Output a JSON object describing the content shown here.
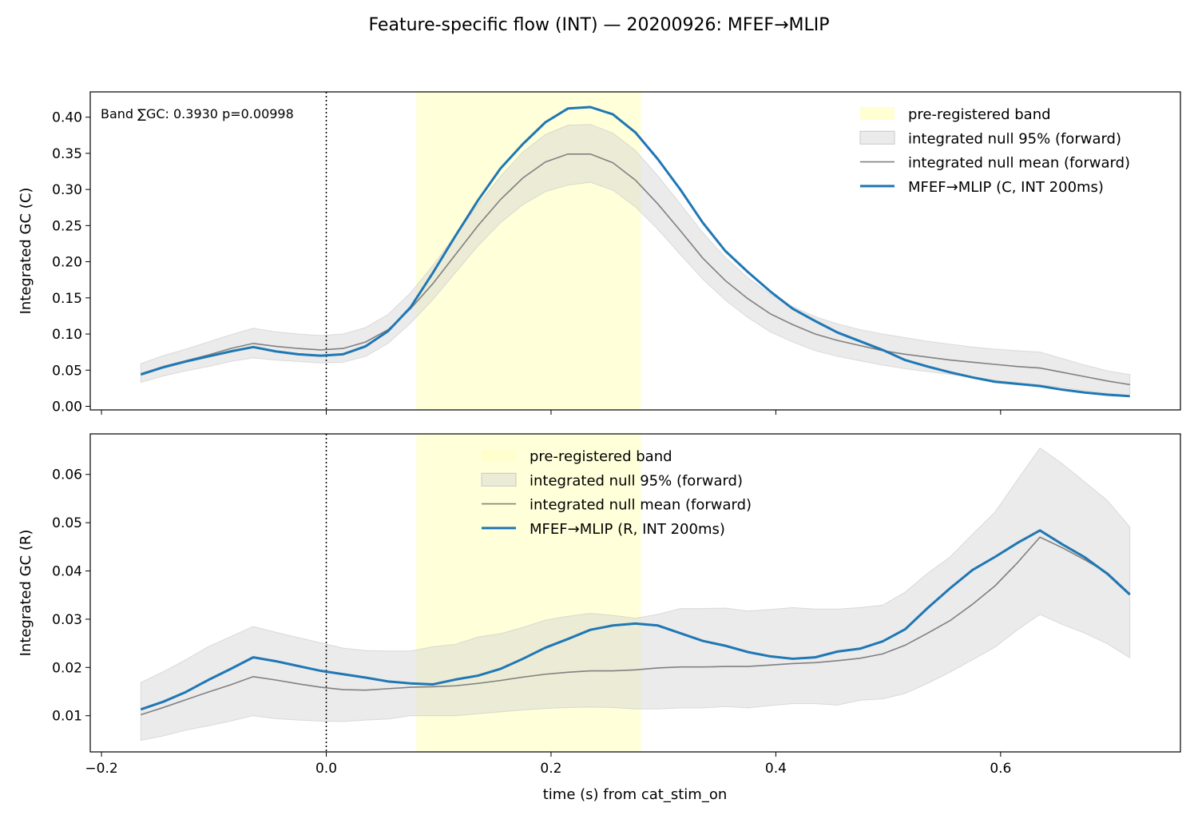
{
  "figure": {
    "title": "Feature-specific flow (INT) — 20200926: MFEF→MLIP",
    "xlabel": "time (s) from cat_stim_on"
  },
  "colors": {
    "band": "#ffffcc",
    "null_fill": "#d3d3d3",
    "null_mean": "#808080",
    "series": "#1f77b4"
  },
  "chart_data": [
    {
      "type": "line",
      "panel": "top",
      "ylabel": "Integrated GC (C)",
      "annotation": "Band ∑GC: 0.3930  p=0.00998",
      "xlim": [
        -0.21,
        0.76
      ],
      "ylim": [
        -0.005,
        0.435
      ],
      "xticks": [
        -0.2,
        0.0,
        0.2,
        0.4,
        0.6
      ],
      "xtick_labels": [],
      "yticks": [
        0.0,
        0.05,
        0.1,
        0.15,
        0.2,
        0.25,
        0.3,
        0.35,
        0.4
      ],
      "ytick_labels": [
        "0.00",
        "0.05",
        "0.10",
        "0.15",
        "0.20",
        "0.25",
        "0.30",
        "0.35",
        "0.40"
      ],
      "legend_position": "top-right",
      "band": {
        "name": "pre-registered band",
        "x0": 0.08,
        "x1": 0.28
      },
      "vline_x": 0.0,
      "x": [
        -0.165,
        -0.145,
        -0.125,
        -0.105,
        -0.085,
        -0.065,
        -0.045,
        -0.025,
        -0.005,
        0.015,
        0.035,
        0.055,
        0.075,
        0.095,
        0.115,
        0.135,
        0.155,
        0.175,
        0.195,
        0.215,
        0.235,
        0.255,
        0.275,
        0.295,
        0.315,
        0.335,
        0.355,
        0.375,
        0.395,
        0.415,
        0.435,
        0.455,
        0.475,
        0.495,
        0.515,
        0.535,
        0.555,
        0.575,
        0.595,
        0.615,
        0.635,
        0.655,
        0.675,
        0.695,
        0.715
      ],
      "series": [
        {
          "name": "MFEF→MLIP (C, INT 200ms)",
          "values": [
            0.044,
            0.054,
            0.062,
            0.069,
            0.076,
            0.082,
            0.076,
            0.072,
            0.07,
            0.072,
            0.083,
            0.104,
            0.137,
            0.185,
            0.236,
            0.285,
            0.329,
            0.363,
            0.393,
            0.412,
            0.414,
            0.404,
            0.379,
            0.342,
            0.3,
            0.254,
            0.215,
            0.186,
            0.159,
            0.135,
            0.118,
            0.102,
            0.09,
            0.078,
            0.064,
            0.055,
            0.047,
            0.04,
            0.034,
            0.031,
            0.028,
            0.023,
            0.019,
            0.016,
            0.014
          ]
        }
      ],
      "null_mean": {
        "name": "integrated null mean (forward)",
        "values": [
          0.045,
          0.055,
          0.063,
          0.071,
          0.08,
          0.087,
          0.083,
          0.08,
          0.078,
          0.08,
          0.089,
          0.106,
          0.135,
          0.17,
          0.21,
          0.25,
          0.286,
          0.316,
          0.338,
          0.349,
          0.349,
          0.337,
          0.313,
          0.28,
          0.243,
          0.205,
          0.174,
          0.149,
          0.128,
          0.113,
          0.1,
          0.091,
          0.084,
          0.077,
          0.072,
          0.068,
          0.064,
          0.061,
          0.058,
          0.055,
          0.053,
          0.047,
          0.041,
          0.035,
          0.03
        ]
      },
      "null_ci": {
        "name": "integrated null 95% (forward)",
        "lower": [
          0.033,
          0.042,
          0.049,
          0.055,
          0.062,
          0.067,
          0.064,
          0.062,
          0.06,
          0.061,
          0.069,
          0.087,
          0.115,
          0.148,
          0.185,
          0.222,
          0.254,
          0.279,
          0.297,
          0.306,
          0.31,
          0.299,
          0.276,
          0.245,
          0.21,
          0.176,
          0.147,
          0.123,
          0.103,
          0.089,
          0.077,
          0.069,
          0.063,
          0.057,
          0.052,
          0.048,
          0.044,
          0.04,
          0.036,
          0.033,
          0.03,
          0.026,
          0.022,
          0.018,
          0.015
        ],
        "upper": [
          0.059,
          0.07,
          0.079,
          0.089,
          0.099,
          0.108,
          0.103,
          0.1,
          0.098,
          0.1,
          0.109,
          0.127,
          0.157,
          0.195,
          0.237,
          0.279,
          0.318,
          0.352,
          0.376,
          0.389,
          0.39,
          0.378,
          0.354,
          0.319,
          0.28,
          0.24,
          0.206,
          0.178,
          0.155,
          0.138,
          0.124,
          0.114,
          0.106,
          0.1,
          0.095,
          0.09,
          0.086,
          0.082,
          0.079,
          0.077,
          0.075,
          0.066,
          0.057,
          0.049,
          0.044
        ]
      }
    },
    {
      "type": "line",
      "panel": "bottom",
      "ylabel": "Integrated GC (R)",
      "xlim": [
        -0.21,
        0.76
      ],
      "ylim": [
        0.0025,
        0.0684
      ],
      "xticks": [
        -0.2,
        0.0,
        0.2,
        0.4,
        0.6
      ],
      "xtick_labels": [
        "−0.2",
        "0.0",
        "0.2",
        "0.4",
        "0.6"
      ],
      "yticks": [
        0.01,
        0.02,
        0.03,
        0.04,
        0.05,
        0.06
      ],
      "ytick_labels": [
        "0.01",
        "0.02",
        "0.03",
        "0.04",
        "0.05",
        "0.06"
      ],
      "legend_position": "upper-center",
      "band": {
        "name": "pre-registered band",
        "x0": 0.08,
        "x1": 0.28
      },
      "vline_x": 0.0,
      "x": [
        -0.165,
        -0.145,
        -0.125,
        -0.105,
        -0.085,
        -0.065,
        -0.045,
        -0.025,
        -0.005,
        0.015,
        0.035,
        0.055,
        0.075,
        0.095,
        0.115,
        0.135,
        0.155,
        0.175,
        0.195,
        0.215,
        0.235,
        0.255,
        0.275,
        0.295,
        0.315,
        0.335,
        0.355,
        0.375,
        0.395,
        0.415,
        0.435,
        0.455,
        0.475,
        0.495,
        0.515,
        0.535,
        0.555,
        0.575,
        0.595,
        0.615,
        0.635,
        0.655,
        0.675,
        0.695,
        0.715
      ],
      "series": [
        {
          "name": "MFEF→MLIP (R, INT 200ms)",
          "values": [
            0.0113,
            0.0129,
            0.0149,
            0.0174,
            0.0197,
            0.0221,
            0.0213,
            0.0203,
            0.0193,
            0.0186,
            0.0179,
            0.0171,
            0.0167,
            0.0165,
            0.0175,
            0.0183,
            0.0197,
            0.0218,
            0.0241,
            0.0259,
            0.0278,
            0.0287,
            0.0291,
            0.0287,
            0.0271,
            0.0255,
            0.0245,
            0.0232,
            0.0223,
            0.0218,
            0.0221,
            0.0233,
            0.0239,
            0.0254,
            0.0279,
            0.0323,
            0.0364,
            0.0402,
            0.0429,
            0.0458,
            0.0484,
            0.0455,
            0.0428,
            0.0394,
            0.0351
          ]
        }
      ],
      "null_mean": {
        "name": "integrated null mean (forward)",
        "values": [
          0.0102,
          0.0117,
          0.0133,
          0.0149,
          0.0164,
          0.0181,
          0.0174,
          0.0166,
          0.0159,
          0.0154,
          0.0153,
          0.0156,
          0.0159,
          0.016,
          0.0162,
          0.0167,
          0.0173,
          0.018,
          0.0186,
          0.019,
          0.0193,
          0.0193,
          0.0195,
          0.0199,
          0.0201,
          0.0201,
          0.0202,
          0.0202,
          0.0205,
          0.0208,
          0.021,
          0.0214,
          0.0219,
          0.0228,
          0.0246,
          0.0271,
          0.0297,
          0.0331,
          0.0369,
          0.0417,
          0.047,
          0.0448,
          0.0423,
          0.0396,
          0.0353
        ]
      },
      "null_ci": {
        "name": "integrated null 95% (forward)",
        "lower": [
          0.0049,
          0.0058,
          0.007,
          0.0079,
          0.0089,
          0.01,
          0.0094,
          0.0091,
          0.0089,
          0.0088,
          0.0091,
          0.0093,
          0.01,
          0.01,
          0.01,
          0.0104,
          0.0108,
          0.0112,
          0.0115,
          0.0117,
          0.0118,
          0.0117,
          0.0114,
          0.0114,
          0.0116,
          0.0116,
          0.0119,
          0.0116,
          0.0121,
          0.0125,
          0.0125,
          0.0122,
          0.0132,
          0.0135,
          0.0146,
          0.0167,
          0.019,
          0.0216,
          0.0242,
          0.0278,
          0.031,
          0.0289,
          0.0271,
          0.0249,
          0.022
        ],
        "upper": [
          0.0169,
          0.0191,
          0.0216,
          0.0243,
          0.0264,
          0.0285,
          0.0273,
          0.0262,
          0.0251,
          0.024,
          0.0235,
          0.0234,
          0.0234,
          0.0243,
          0.0248,
          0.0263,
          0.027,
          0.0283,
          0.0298,
          0.0306,
          0.0312,
          0.0308,
          0.0302,
          0.031,
          0.0322,
          0.0322,
          0.0323,
          0.0317,
          0.032,
          0.0324,
          0.0321,
          0.0321,
          0.0324,
          0.0329,
          0.0356,
          0.0395,
          0.0429,
          0.0476,
          0.0522,
          0.0589,
          0.0655,
          0.0622,
          0.0584,
          0.0546,
          0.0491
        ]
      }
    }
  ]
}
